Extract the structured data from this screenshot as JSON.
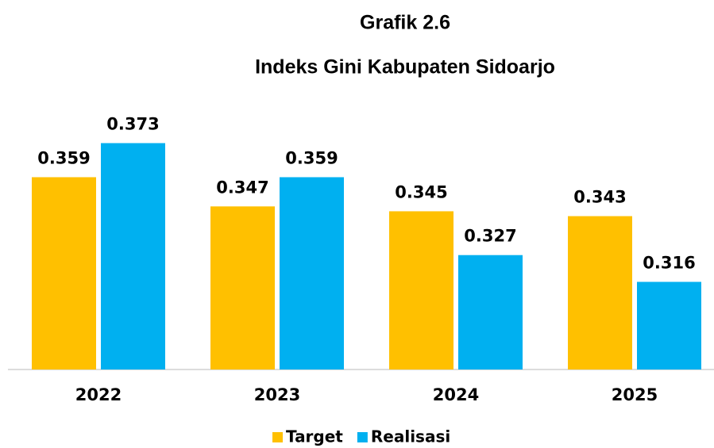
{
  "chart_data": {
    "type": "bar",
    "title": "Grafik 2.6",
    "subtitle": "Indeks Gini Kabupaten Sidoarjo",
    "categories": [
      "2022",
      "2023",
      "2024",
      "2025"
    ],
    "series": [
      {
        "name": "Target",
        "color": "#FFC000",
        "values": [
          0.359,
          0.347,
          0.345,
          0.343
        ]
      },
      {
        "name": "Realisasi",
        "color": "#00B0F0",
        "values": [
          0.373,
          0.359,
          0.327,
          0.316
        ]
      }
    ],
    "ylim": [
      0.28,
      0.38
    ],
    "legend": "bottom"
  }
}
